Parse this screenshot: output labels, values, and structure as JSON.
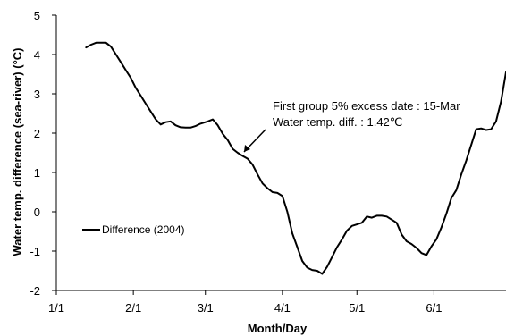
{
  "chart_data": {
    "type": "line",
    "xlabel": "Month/Day",
    "ylabel": "Water temp. difference (sea-river)  (°C)",
    "ylim": [
      -2,
      5
    ],
    "yticks": [
      5,
      4,
      3,
      2,
      1,
      0,
      -1,
      -2
    ],
    "x_tick_labels": [
      "1/1",
      "2/1",
      "3/1",
      "4/1",
      "5/1",
      "6/1"
    ],
    "x_axis_range": [
      "1/1",
      "6/30"
    ],
    "grid": false,
    "legend": {
      "position": "left-middle",
      "entries": [
        "Difference (2004)"
      ]
    },
    "annotation": {
      "line1": "First group 5% excess  date : 15-Mar",
      "line2": "Water temp. diff. : 1.42℃",
      "points_to": {
        "x": "3/15",
        "y": 1.42
      }
    },
    "colors": {
      "series": "#000000",
      "axis": "#000000"
    },
    "series": [
      {
        "name": "Difference (2004)",
        "x": [
          "1/13",
          "1/15",
          "1/17",
          "1/19",
          "1/21",
          "1/23",
          "1/25",
          "1/27",
          "1/29",
          "1/31",
          "2/2",
          "2/4",
          "2/6",
          "2/8",
          "2/10",
          "2/12",
          "2/14",
          "2/16",
          "2/18",
          "2/20",
          "2/22",
          "2/24",
          "2/26",
          "2/28",
          "3/2",
          "3/4",
          "3/6",
          "3/8",
          "3/10",
          "3/12",
          "3/14",
          "3/16",
          "3/18",
          "3/20",
          "3/22",
          "3/24",
          "3/26",
          "3/28",
          "3/30",
          "4/1",
          "4/3",
          "4/5",
          "4/7",
          "4/9",
          "4/11",
          "4/13",
          "4/15",
          "4/17",
          "4/19",
          "4/21",
          "4/23",
          "4/25",
          "4/27",
          "4/29",
          "5/1",
          "5/3",
          "5/5",
          "5/7",
          "5/9",
          "5/11",
          "5/13",
          "5/15",
          "5/17",
          "5/19",
          "5/21",
          "5/23",
          "5/25",
          "5/27",
          "5/29",
          "5/31",
          "6/2",
          "6/4",
          "6/6",
          "6/8",
          "6/10",
          "6/12",
          "6/14",
          "6/16",
          "6/18",
          "6/20",
          "6/22",
          "6/24",
          "6/26",
          "6/28",
          "6/30"
        ],
        "y": [
          4.18,
          4.25,
          4.3,
          4.3,
          4.3,
          4.2,
          4.0,
          3.8,
          3.6,
          3.4,
          3.15,
          2.95,
          2.75,
          2.55,
          2.35,
          2.22,
          2.28,
          2.3,
          2.2,
          2.15,
          2.14,
          2.14,
          2.18,
          2.24,
          2.3,
          2.35,
          2.2,
          1.98,
          1.82,
          1.6,
          1.5,
          1.42,
          1.35,
          1.2,
          0.95,
          0.72,
          0.6,
          0.5,
          0.48,
          0.4,
          0.0,
          -0.55,
          -0.9,
          -1.25,
          -1.42,
          -1.48,
          -1.5,
          -1.58,
          -1.4,
          -1.15,
          -0.9,
          -0.7,
          -0.48,
          -0.36,
          -0.32,
          -0.28,
          -0.12,
          -0.15,
          -0.1,
          -0.1,
          -0.12,
          -0.2,
          -0.28,
          -0.58,
          -0.75,
          -0.82,
          -0.92,
          -1.05,
          -1.1,
          -0.88,
          -0.7,
          -0.4,
          -0.05,
          0.35,
          0.55,
          0.95,
          1.3,
          1.7,
          2.1,
          2.12,
          2.08,
          2.1,
          2.3,
          2.8,
          3.55
        ]
      }
    ]
  }
}
